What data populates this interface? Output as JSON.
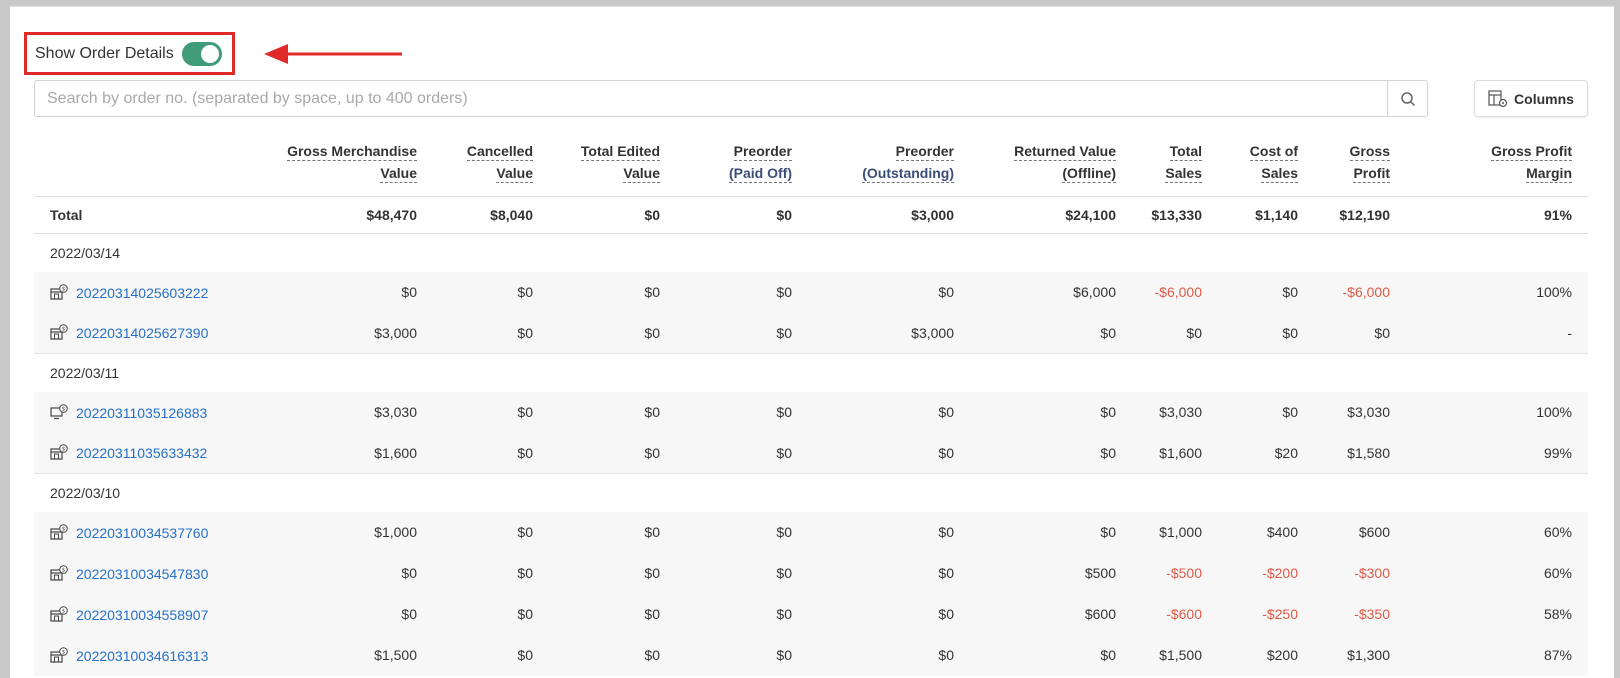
{
  "toggle": {
    "label": "Show Order Details",
    "on": true
  },
  "search": {
    "placeholder": "Search by order no. (separated by space, up to 400 orders)"
  },
  "columns_button": {
    "label": "Columns"
  },
  "colors": {
    "accent": "#3f9b78",
    "link": "#2670c9",
    "negative": "#e05a48",
    "highlight": "#e02a2a"
  },
  "table": {
    "headers": [
      [
        "Gross Merchandise",
        "Value"
      ],
      [
        "Cancelled",
        "Value"
      ],
      [
        "Total Edited",
        "Value"
      ],
      [
        "Preorder",
        "(Paid Off)"
      ],
      [
        "Preorder",
        "(Outstanding)"
      ],
      [
        "Returned Value",
        "(Offline)"
      ],
      [
        "Total",
        "Sales"
      ],
      [
        "Cost of",
        "Sales"
      ],
      [
        "Gross",
        "Profit"
      ],
      [
        "Gross Profit",
        "Margin"
      ]
    ],
    "total": {
      "label": "Total",
      "values": [
        "$48,470",
        "$8,040",
        "$0",
        "$0",
        "$3,000",
        "$24,100",
        "$13,330",
        "$1,140",
        "$12,190",
        "91%"
      ]
    },
    "groups": [
      {
        "date": "2022/03/14",
        "orders": [
          {
            "icon": "store-icon",
            "no": "20220314025603222",
            "values": [
              "$0",
              "$0",
              "$0",
              "$0",
              "$0",
              "$6,000",
              "-$6,000",
              "$0",
              "-$6,000",
              "100%"
            ]
          },
          {
            "icon": "store-icon",
            "no": "20220314025627390",
            "values": [
              "$3,000",
              "$0",
              "$0",
              "$0",
              "$3,000",
              "$0",
              "$0",
              "$0",
              "$0",
              "-"
            ]
          }
        ]
      },
      {
        "date": "2022/03/11",
        "orders": [
          {
            "icon": "online-store-icon",
            "no": "20220311035126883",
            "values": [
              "$3,030",
              "$0",
              "$0",
              "$0",
              "$0",
              "$0",
              "$3,030",
              "$0",
              "$3,030",
              "100%"
            ]
          },
          {
            "icon": "store-icon",
            "no": "20220311035633432",
            "values": [
              "$1,600",
              "$0",
              "$0",
              "$0",
              "$0",
              "$0",
              "$1,600",
              "$20",
              "$1,580",
              "99%"
            ]
          }
        ]
      },
      {
        "date": "2022/03/10",
        "orders": [
          {
            "icon": "store-icon",
            "no": "20220310034537760",
            "values": [
              "$1,000",
              "$0",
              "$0",
              "$0",
              "$0",
              "$0",
              "$1,000",
              "$400",
              "$600",
              "60%"
            ]
          },
          {
            "icon": "store-icon",
            "no": "20220310034547830",
            "values": [
              "$0",
              "$0",
              "$0",
              "$0",
              "$0",
              "$500",
              "-$500",
              "-$200",
              "-$300",
              "60%"
            ]
          },
          {
            "icon": "store-icon",
            "no": "20220310034558907",
            "values": [
              "$0",
              "$0",
              "$0",
              "$0",
              "$0",
              "$600",
              "-$600",
              "-$250",
              "-$350",
              "58%"
            ]
          },
          {
            "icon": "store-icon",
            "no": "20220310034616313",
            "values": [
              "$1,500",
              "$0",
              "$0",
              "$0",
              "$0",
              "$0",
              "$1,500",
              "$200",
              "$1,300",
              "87%"
            ]
          }
        ]
      }
    ]
  }
}
